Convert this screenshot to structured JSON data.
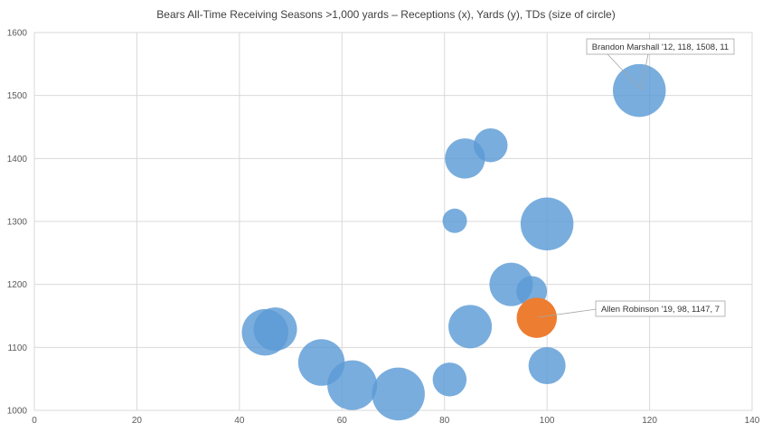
{
  "chart_data": {
    "type": "scatter",
    "subtype": "bubble",
    "title": "Bears All-Time Receiving Seasons >1,000 yards – Receptions (x), Yards (y), TDs (size of circle)",
    "xlabel": "",
    "ylabel": "",
    "xlim": [
      0,
      140
    ],
    "ylim": [
      1000,
      1600
    ],
    "x_ticks": [
      0,
      20,
      40,
      60,
      80,
      100,
      120,
      140
    ],
    "y_ticks": [
      1000,
      1100,
      1200,
      1300,
      1400,
      1500,
      1600
    ],
    "grid": true,
    "legend": "none",
    "colors": {
      "default": "#5B9BD5",
      "highlight": "#ED7D31"
    },
    "points": [
      {
        "x": 45,
        "y": 1124,
        "td": 9
      },
      {
        "x": 47,
        "y": 1129,
        "td": 8
      },
      {
        "x": 56,
        "y": 1076,
        "td": 9
      },
      {
        "x": 62,
        "y": 1040,
        "td": 10
      },
      {
        "x": 71,
        "y": 1026,
        "td": 11
      },
      {
        "x": 81,
        "y": 1049,
        "td": 5
      },
      {
        "x": 82,
        "y": 1301,
        "td": 2
      },
      {
        "x": 84,
        "y": 1400,
        "td": 7
      },
      {
        "x": 85,
        "y": 1133,
        "td": 8
      },
      {
        "x": 89,
        "y": 1421,
        "td": 5
      },
      {
        "x": 93,
        "y": 1200,
        "td": 8
      },
      {
        "x": 97,
        "y": 1189,
        "td": 4
      },
      {
        "x": 98,
        "y": 1147,
        "td": 7,
        "highlight": true
      },
      {
        "x": 100,
        "y": 1071,
        "td": 6
      },
      {
        "x": 100,
        "y": 1296,
        "td": 11
      },
      {
        "x": 118,
        "y": 1508,
        "td": 11
      }
    ],
    "annotations": [
      {
        "text": "Brandon Marshall '12, 118, 1508, 11",
        "x": 118,
        "y": 1508
      },
      {
        "text": "Allen Robinson '19, 98, 1147, 7",
        "x": 98,
        "y": 1147
      }
    ]
  }
}
